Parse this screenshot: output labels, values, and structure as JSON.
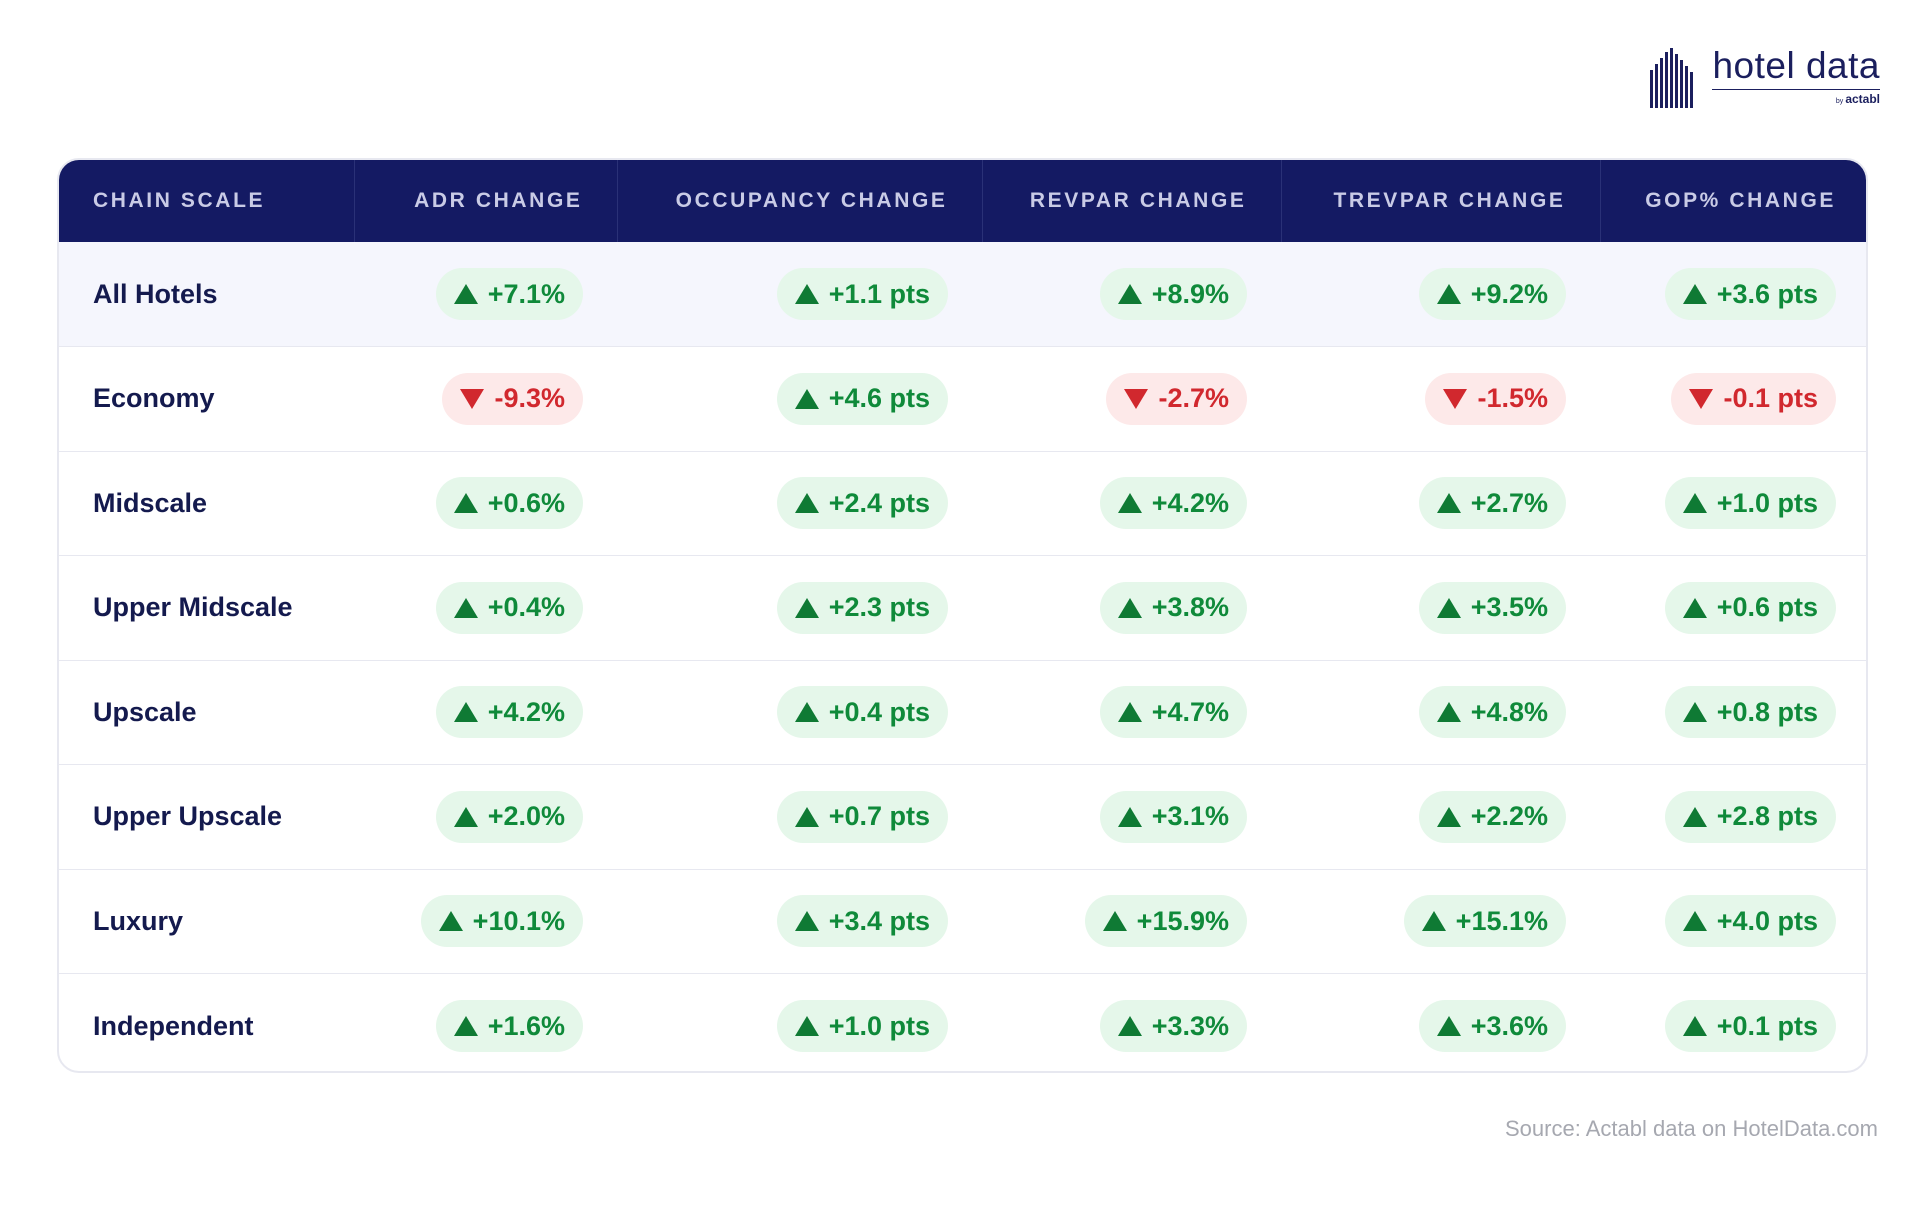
{
  "brand": {
    "name": "hotel data",
    "by_prefix": "by",
    "by_name": "actabl",
    "color": "#1b1f5e"
  },
  "colors": {
    "header_bg": "#141a63",
    "positive": "#0f8a3a",
    "negative": "#d1282e"
  },
  "chart_data": {
    "type": "table",
    "columns": [
      "CHAIN SCALE",
      "ADR CHANGE",
      "OCCUPANCY CHANGE",
      "REVPAR CHANGE",
      "TREVPAR CHANGE",
      "GOP% CHANGE"
    ],
    "rows": [
      {
        "label": "All Hotels",
        "cells": [
          {
            "text": "+7.1%",
            "dir": "up"
          },
          {
            "text": "+1.1 pts",
            "dir": "up"
          },
          {
            "text": "+8.9%",
            "dir": "up"
          },
          {
            "text": "+9.2%",
            "dir": "up"
          },
          {
            "text": "+3.6 pts",
            "dir": "up"
          }
        ]
      },
      {
        "label": "Economy",
        "cells": [
          {
            "text": "-9.3%",
            "dir": "down"
          },
          {
            "text": "+4.6 pts",
            "dir": "up"
          },
          {
            "text": "-2.7%",
            "dir": "down"
          },
          {
            "text": "-1.5%",
            "dir": "down"
          },
          {
            "text": "-0.1 pts",
            "dir": "down"
          }
        ]
      },
      {
        "label": "Midscale",
        "cells": [
          {
            "text": "+0.6%",
            "dir": "up"
          },
          {
            "text": "+2.4 pts",
            "dir": "up"
          },
          {
            "text": "+4.2%",
            "dir": "up"
          },
          {
            "text": "+2.7%",
            "dir": "up"
          },
          {
            "text": "+1.0 pts",
            "dir": "up"
          }
        ]
      },
      {
        "label": "Upper Midscale",
        "cells": [
          {
            "text": "+0.4%",
            "dir": "up"
          },
          {
            "text": "+2.3 pts",
            "dir": "up"
          },
          {
            "text": "+3.8%",
            "dir": "up"
          },
          {
            "text": "+3.5%",
            "dir": "up"
          },
          {
            "text": "+0.6 pts",
            "dir": "up"
          }
        ]
      },
      {
        "label": "Upscale",
        "cells": [
          {
            "text": "+4.2%",
            "dir": "up"
          },
          {
            "text": "+0.4 pts",
            "dir": "up"
          },
          {
            "text": "+4.7%",
            "dir": "up"
          },
          {
            "text": "+4.8%",
            "dir": "up"
          },
          {
            "text": "+0.8 pts",
            "dir": "up"
          }
        ]
      },
      {
        "label": "Upper Upscale",
        "cells": [
          {
            "text": "+2.0%",
            "dir": "up"
          },
          {
            "text": "+0.7 pts",
            "dir": "up"
          },
          {
            "text": "+3.1%",
            "dir": "up"
          },
          {
            "text": "+2.2%",
            "dir": "up"
          },
          {
            "text": "+2.8 pts",
            "dir": "up"
          }
        ]
      },
      {
        "label": "Luxury",
        "cells": [
          {
            "text": "+10.1%",
            "dir": "up"
          },
          {
            "text": "+3.4 pts",
            "dir": "up"
          },
          {
            "text": "+15.9%",
            "dir": "up"
          },
          {
            "text": "+15.1%",
            "dir": "up"
          },
          {
            "text": "+4.0 pts",
            "dir": "up"
          }
        ]
      },
      {
        "label": "Independent",
        "cells": [
          {
            "text": "+1.6%",
            "dir": "up"
          },
          {
            "text": "+1.0 pts",
            "dir": "up"
          },
          {
            "text": "+3.3%",
            "dir": "up"
          },
          {
            "text": "+3.6%",
            "dir": "up"
          },
          {
            "text": "+0.1 pts",
            "dir": "up"
          }
        ]
      }
    ]
  },
  "source": "Source: Actabl data on HotelData.com"
}
